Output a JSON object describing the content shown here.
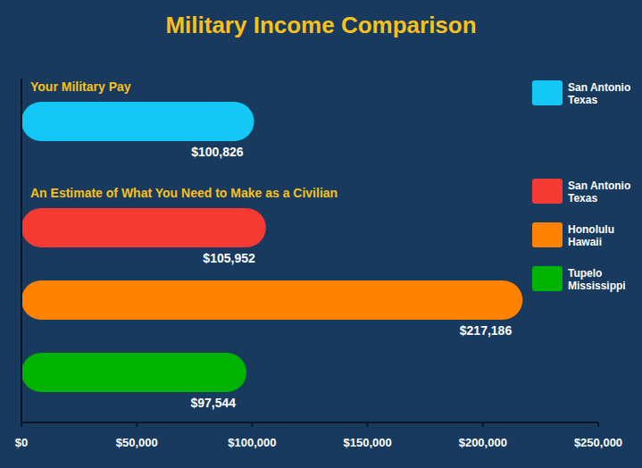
{
  "chart_data": {
    "type": "bar",
    "orientation": "horizontal",
    "title": "Military Income Comparison",
    "annotations": [
      "Your Military Pay",
      "An Estimate of What You Need to Make as a Civilian"
    ],
    "categories": [
      "San Antonio Texas",
      "San Antonio Texas",
      "Honolulu Hawaii",
      "Tupelo Mississippi"
    ],
    "values": [
      100826,
      105952,
      217186,
      97544
    ],
    "value_labels": [
      "$100,826",
      "$105,952",
      "$217,186",
      "$97,544"
    ],
    "colors": [
      "#14c8f5",
      "#f53a34",
      "#ff8200",
      "#00b300"
    ],
    "xlim": [
      0,
      250000
    ],
    "xticks": [
      {
        "value": 0,
        "label": "$0"
      },
      {
        "value": 50000,
        "label": "$50,000"
      },
      {
        "value": 100000,
        "label": "$100,000"
      },
      {
        "value": 150000,
        "label": "$150,000"
      },
      {
        "value": 200000,
        "label": "$200,000"
      },
      {
        "value": 250000,
        "label": "$250,000"
      }
    ],
    "data_labels": true,
    "legend": "right",
    "tick_labels": "x",
    "grid": false
  }
}
